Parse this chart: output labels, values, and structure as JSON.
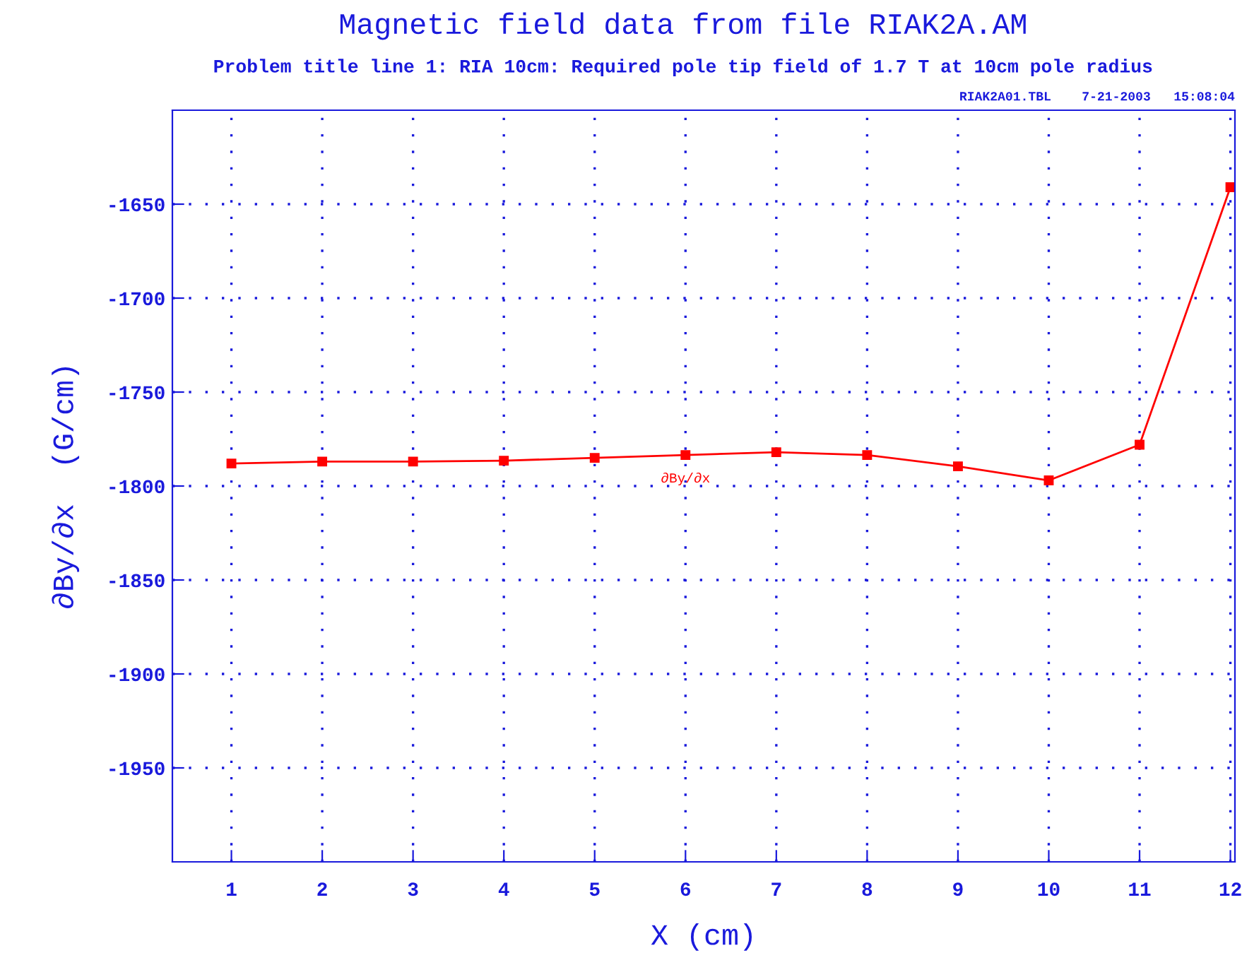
{
  "chart_data": {
    "type": "line",
    "title": "Magnetic field data from file RIAK2A.AM",
    "subtitle": "Problem title line 1: RIA 10cm: Required pole tip field of 1.7 T at 10cm pole radius",
    "xlabel": "X (cm)",
    "ylabel": "∂By/∂x  (G/cm)",
    "annotations": [
      "RIAK2A01.TBL    7-21-2003   15:08:04"
    ],
    "x": [
      1,
      2,
      3,
      4,
      5,
      6,
      7,
      8,
      9,
      10,
      11,
      12
    ],
    "series": [
      {
        "name": "∂By/∂x",
        "color": "#ff0000",
        "values": [
          -1788,
          -1787,
          -1787,
          -1786.5,
          -1785,
          -1783.5,
          -1782,
          -1783.5,
          -1789.5,
          -1797,
          -1778,
          -1641
        ]
      }
    ],
    "xlim": [
      0.35,
      12.05
    ],
    "xticks": [
      1,
      2,
      3,
      4,
      5,
      6,
      7,
      8,
      9,
      10,
      11,
      12
    ],
    "ylim": [
      -2000,
      -1600
    ],
    "yticks": [
      -1950,
      -1900,
      -1850,
      -1800,
      -1750,
      -1700,
      -1650
    ],
    "grid": true,
    "marker": "square",
    "line_style": "solid"
  }
}
